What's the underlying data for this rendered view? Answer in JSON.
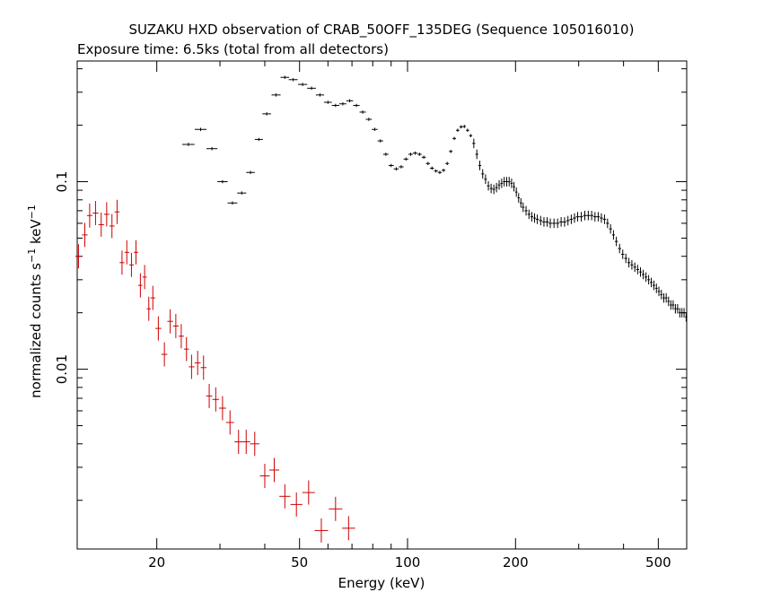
{
  "chart_data": {
    "type": "scatter",
    "title": "SUZAKU HXD observation of CRAB_50OFF_135DEG (Sequence 105016010)",
    "subtitle": "Exposure time: 6.5ks (total from all detectors)",
    "xlabel": "Energy (keV)",
    "ylabel_main": "normalized counts s",
    "ylabel_sup1": "−1",
    "ylabel_mid": " keV",
    "ylabel_sup2": "−1",
    "x_scale": "log",
    "y_scale": "log",
    "xlim": [
      12,
      600
    ],
    "ylim": [
      0.0011,
      0.44
    ],
    "x_ticks": [
      {
        "value": 20,
        "label": "20"
      },
      {
        "value": 50,
        "label": "50"
      },
      {
        "value": 100,
        "label": "100"
      },
      {
        "value": 200,
        "label": "200"
      },
      {
        "value": 500,
        "label": "500"
      }
    ],
    "y_ticks": [
      {
        "value": 0.01,
        "label": "0.01"
      },
      {
        "value": 0.1,
        "label": "0.1"
      }
    ],
    "grid": false,
    "legend": "none",
    "colors": {
      "series_1": "#000000",
      "series_2": "#cc0000"
    },
    "series": [
      {
        "color": "#000000",
        "points": [
          [
            24.5,
            0.158
          ],
          [
            26.5,
            0.19
          ],
          [
            28.5,
            0.15
          ],
          [
            30.5,
            0.1
          ],
          [
            32.5,
            0.077
          ],
          [
            34.5,
            0.087
          ],
          [
            36.5,
            0.112
          ],
          [
            38.5,
            0.168
          ],
          [
            40.5,
            0.23
          ],
          [
            43.0,
            0.29
          ],
          [
            45.5,
            0.36
          ],
          [
            48.0,
            0.35
          ],
          [
            51.0,
            0.33
          ],
          [
            54.0,
            0.315
          ],
          [
            57.0,
            0.29
          ],
          [
            60.0,
            0.265
          ],
          [
            63.0,
            0.255
          ],
          [
            66.0,
            0.26
          ],
          [
            69.0,
            0.27
          ],
          [
            72.0,
            0.255
          ],
          [
            75.0,
            0.235
          ],
          [
            78.0,
            0.215
          ],
          [
            81.0,
            0.19
          ],
          [
            84.0,
            0.165
          ],
          [
            87.0,
            0.14
          ],
          [
            90.0,
            0.122
          ],
          [
            93.0,
            0.117
          ],
          [
            96.0,
            0.12
          ],
          [
            99.0,
            0.132
          ],
          [
            102.0,
            0.14
          ],
          [
            105.0,
            0.142
          ],
          [
            108.0,
            0.14
          ],
          [
            111.0,
            0.135
          ],
          [
            114.0,
            0.125
          ],
          [
            117.0,
            0.118
          ],
          [
            120.0,
            0.114
          ],
          [
            123.0,
            0.112
          ],
          [
            126.0,
            0.115
          ],
          [
            129.0,
            0.125
          ],
          [
            132.0,
            0.145
          ],
          [
            135.0,
            0.17
          ],
          [
            138.0,
            0.188
          ],
          [
            141.0,
            0.196
          ],
          [
            144.0,
            0.197
          ],
          [
            147.0,
            0.188
          ],
          [
            150.0,
            0.176
          ],
          [
            153.0,
            0.16
          ],
          [
            156.0,
            0.14
          ],
          [
            159.0,
            0.122
          ],
          [
            162.0,
            0.11
          ],
          [
            165.0,
            0.103
          ],
          [
            168.0,
            0.095
          ],
          [
            171.0,
            0.092
          ],
          [
            174.0,
            0.091
          ],
          [
            177.0,
            0.093
          ],
          [
            180.0,
            0.096
          ],
          [
            183.0,
            0.098
          ],
          [
            186.0,
            0.1
          ],
          [
            189.0,
            0.1
          ],
          [
            192.0,
            0.1
          ],
          [
            195.0,
            0.098
          ],
          [
            198.0,
            0.094
          ],
          [
            201.0,
            0.088
          ],
          [
            204.0,
            0.082
          ],
          [
            207.0,
            0.077
          ],
          [
            210.0,
            0.073
          ],
          [
            214.0,
            0.07
          ],
          [
            218.0,
            0.067
          ],
          [
            222.0,
            0.065
          ],
          [
            226.0,
            0.064
          ],
          [
            230.0,
            0.063
          ],
          [
            235.0,
            0.062
          ],
          [
            240.0,
            0.061
          ],
          [
            245.0,
            0.061
          ],
          [
            250.0,
            0.06
          ],
          [
            256.0,
            0.06
          ],
          [
            262.0,
            0.06
          ],
          [
            268.0,
            0.061
          ],
          [
            274.0,
            0.061
          ],
          [
            280.0,
            0.062
          ],
          [
            286.0,
            0.063
          ],
          [
            292.0,
            0.064
          ],
          [
            298.0,
            0.065
          ],
          [
            305.0,
            0.065
          ],
          [
            312.0,
            0.066
          ],
          [
            319.0,
            0.066
          ],
          [
            326.0,
            0.066
          ],
          [
            333.0,
            0.065
          ],
          [
            340.0,
            0.065
          ],
          [
            347.0,
            0.064
          ],
          [
            354.0,
            0.063
          ],
          [
            361.0,
            0.06
          ],
          [
            368.0,
            0.056
          ],
          [
            375.0,
            0.052
          ],
          [
            382.0,
            0.048
          ],
          [
            390.0,
            0.044
          ],
          [
            398.0,
            0.041
          ],
          [
            406.0,
            0.039
          ],
          [
            414.0,
            0.037
          ],
          [
            422.0,
            0.036
          ],
          [
            430.0,
            0.035
          ],
          [
            438.0,
            0.034
          ],
          [
            446.0,
            0.033
          ],
          [
            454.0,
            0.032
          ],
          [
            462.0,
            0.031
          ],
          [
            470.0,
            0.03
          ],
          [
            478.0,
            0.029
          ],
          [
            486.0,
            0.028
          ],
          [
            494.0,
            0.027
          ],
          [
            502.0,
            0.026
          ],
          [
            510.0,
            0.025
          ],
          [
            518.0,
            0.024
          ],
          [
            526.0,
            0.024
          ],
          [
            534.0,
            0.023
          ],
          [
            542.0,
            0.022
          ],
          [
            550.0,
            0.022
          ],
          [
            558.0,
            0.021
          ],
          [
            566.0,
            0.021
          ],
          [
            574.0,
            0.02
          ],
          [
            582.0,
            0.02
          ],
          [
            590.0,
            0.02
          ],
          [
            598.0,
            0.019
          ]
        ]
      },
      {
        "color": "#cc0000",
        "points": [
          [
            12.1,
            0.04
          ],
          [
            12.6,
            0.052
          ],
          [
            13.0,
            0.066
          ],
          [
            13.5,
            0.068
          ],
          [
            14.0,
            0.059
          ],
          [
            14.5,
            0.067
          ],
          [
            15.0,
            0.058
          ],
          [
            15.5,
            0.069
          ],
          [
            16.0,
            0.037
          ],
          [
            16.5,
            0.042
          ],
          [
            17.0,
            0.036
          ],
          [
            17.5,
            0.042
          ],
          [
            18.0,
            0.028
          ],
          [
            18.5,
            0.031
          ],
          [
            19.0,
            0.021
          ],
          [
            19.5,
            0.024
          ],
          [
            20.2,
            0.0165
          ],
          [
            21.0,
            0.012
          ],
          [
            21.8,
            0.018
          ],
          [
            22.6,
            0.017
          ],
          [
            23.4,
            0.015
          ],
          [
            24.2,
            0.0128
          ],
          [
            25.0,
            0.0103
          ],
          [
            26.0,
            0.0108
          ],
          [
            27.0,
            0.0102
          ],
          [
            28.0,
            0.0072
          ],
          [
            29.2,
            0.0069
          ],
          [
            30.5,
            0.0062
          ],
          [
            32.0,
            0.0052
          ],
          [
            33.8,
            0.0041
          ],
          [
            35.5,
            0.0041
          ],
          [
            37.5,
            0.004
          ],
          [
            40.0,
            0.0027
          ],
          [
            42.5,
            0.0029
          ],
          [
            45.5,
            0.0021
          ],
          [
            49.0,
            0.0019
          ],
          [
            53.0,
            0.0022
          ],
          [
            57.5,
            0.00138
          ],
          [
            63.0,
            0.0018
          ],
          [
            68.5,
            0.00142
          ]
        ]
      }
    ]
  }
}
